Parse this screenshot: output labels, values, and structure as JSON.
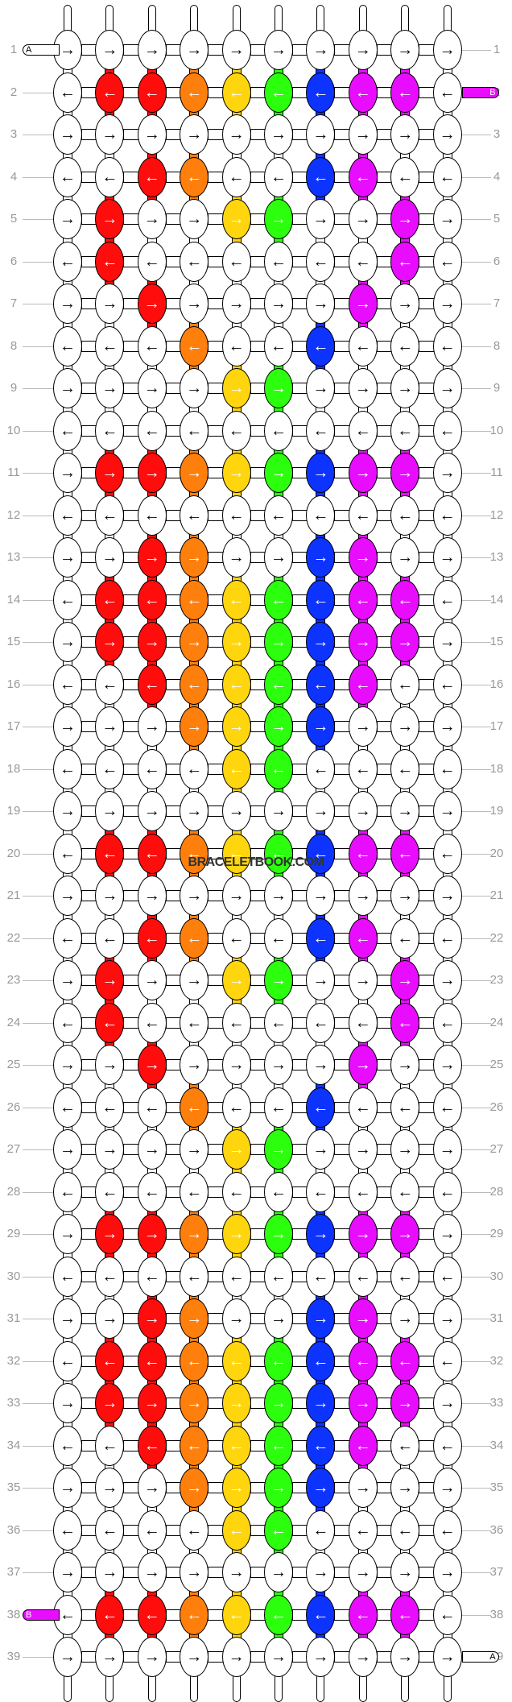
{
  "watermark": "BRACELETBOOK.COM",
  "colors": {
    "W": "#ffffff",
    "R": "#ff0d0d",
    "O": "#ff7f0d",
    "Y": "#ffd50d",
    "G": "#2cff0d",
    "B": "#0d34ff",
    "M": "#e80dff"
  },
  "arrow_right": "→",
  "arrow_left": "←",
  "labels": {
    "A": "A",
    "B": "B"
  },
  "ends": [
    {
      "row": 1,
      "side": "left",
      "label": "A",
      "color": "W"
    },
    {
      "row": 2,
      "side": "right",
      "label": "B",
      "color": "M"
    },
    {
      "row": 38,
      "side": "left",
      "label": "B",
      "color": "M"
    },
    {
      "row": 39,
      "side": "right",
      "label": "A",
      "color": "W"
    }
  ],
  "rows": [
    "WWWWWWWWWW",
    "WRROYGBMMW",
    "WWWWWWWWWW",
    "WWROWWBMWW",
    "WRWWYGWWMW",
    "WRWWWWWWMW",
    "WWRWWWWMWW",
    "WWWOWWBWWW",
    "WWWWYGWWWW",
    "WWWWWWWWWW",
    "WRROYGBMMW",
    "WWWWWWWWWW",
    "WWROWWBMWW",
    "WRROYGBMMW",
    "WRROYGBMMW",
    "WWROYGBMWW",
    "WWWOYGBWWW",
    "WWWWYGWWWW",
    "WWWWWWWWWW",
    "WRROYGBMMW",
    "WWWWWWWWWW",
    "WWROWWBMWW",
    "WRWWYGWWMW",
    "WRWWWWWWMW",
    "WWRWWWWMWW",
    "WWWOWWBWWW",
    "WWWWYGWWWW",
    "WWWWWWWWWW",
    "WRROYGBMMW",
    "WWWWWWWWWW",
    "WWROWWBMWW",
    "WRROYGBMMW",
    "WRROYGBMMW",
    "WWROYGBMWW",
    "WWWOYGBWWW",
    "WWWWYGWWWW",
    "WWWWWWWWWW",
    "WRROYGBMMW",
    "WWWWWWWWWW"
  ]
}
